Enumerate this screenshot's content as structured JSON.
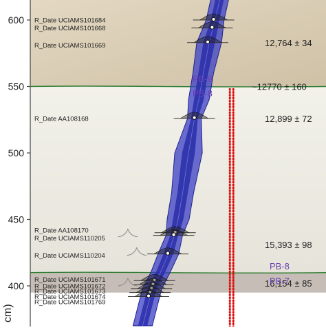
{
  "chart_data": {
    "type": "scatter",
    "ylabel": "cm)",
    "ylim": [
      395,
      625
    ],
    "y_ticks": [
      400,
      450,
      500,
      550,
      600
    ],
    "horizons": [
      550,
      410
    ],
    "units": [
      {
        "name": "PB-9",
        "range": [
          550,
          625
        ],
        "color": "#d9cdb6"
      },
      {
        "name": "PB-8",
        "range": [
          410,
          550
        ],
        "color": "#ecebe3"
      },
      {
        "name": "PB-7",
        "range": [
          395,
          410
        ],
        "color": "#c6beb6"
      }
    ],
    "unit_labels": [
      {
        "text": "PB-9",
        "depth": 556
      },
      {
        "text": "PB-8",
        "depth": 545
      },
      {
        "text": "PB-8",
        "depth": 415
      },
      {
        "text": "PB-7",
        "depth": 404
      }
    ],
    "samples": [
      {
        "label": "R_Date UCIAMS101684",
        "label_depth": 600,
        "depth": 600,
        "x": 0.62
      },
      {
        "label": "R_Date UCIAMS101668",
        "label_depth": 594,
        "depth": 594,
        "x": 0.615
      },
      {
        "label": "R_Date UCIAMS101669",
        "label_depth": 581,
        "depth": 583,
        "x": 0.6
      },
      {
        "label": "R_Date AA108168",
        "label_depth": 526,
        "depth": 526,
        "x": 0.555
      },
      {
        "label": "R_Date AA108170",
        "label_depth": 442,
        "depth": 440,
        "x": 0.49
      },
      {
        "label": "R_Date UCIAMS110205",
        "label_depth": 436,
        "depth": 438,
        "x": 0.485
      },
      {
        "label": "R_Date UCIAMS110204",
        "label_depth": 423,
        "depth": 424,
        "x": 0.465
      },
      {
        "label": "R_Date UCIAMS101671",
        "label_depth": 405,
        "depth": 404,
        "x": 0.42
      },
      {
        "label": "R_Date UCIAMS101672",
        "label_depth": 400,
        "depth": 401,
        "x": 0.415
      },
      {
        "label": "R_Date UCIAMS101673",
        "label_depth": 396,
        "depth": 398,
        "x": 0.41
      },
      {
        "label": "R_Date UCIAMS101674",
        "label_depth": 392,
        "depth": 395,
        "x": 0.405
      },
      {
        "label": "R_Date UCIAMS101769",
        "label_depth": 388,
        "depth": 392,
        "x": 0.4
      }
    ],
    "annotations": [
      {
        "text": "12,764 ± 34",
        "depth": 583
      },
      {
        "text": "~12770 ± 160",
        "depth": 550
      },
      {
        "text": "12,899 ± 72",
        "depth": 526
      },
      {
        "text": "15,393 ± 98",
        "depth": 431
      },
      {
        "text": "16,154 ± 85",
        "depth": 402
      }
    ],
    "colors": {
      "envelope": "#3b3fc4",
      "envelope_core": "#2a2ea8",
      "boundary_line": "#2e7d32",
      "dotted_line": "#e01010",
      "unit_label": "#6a3fb5"
    }
  }
}
